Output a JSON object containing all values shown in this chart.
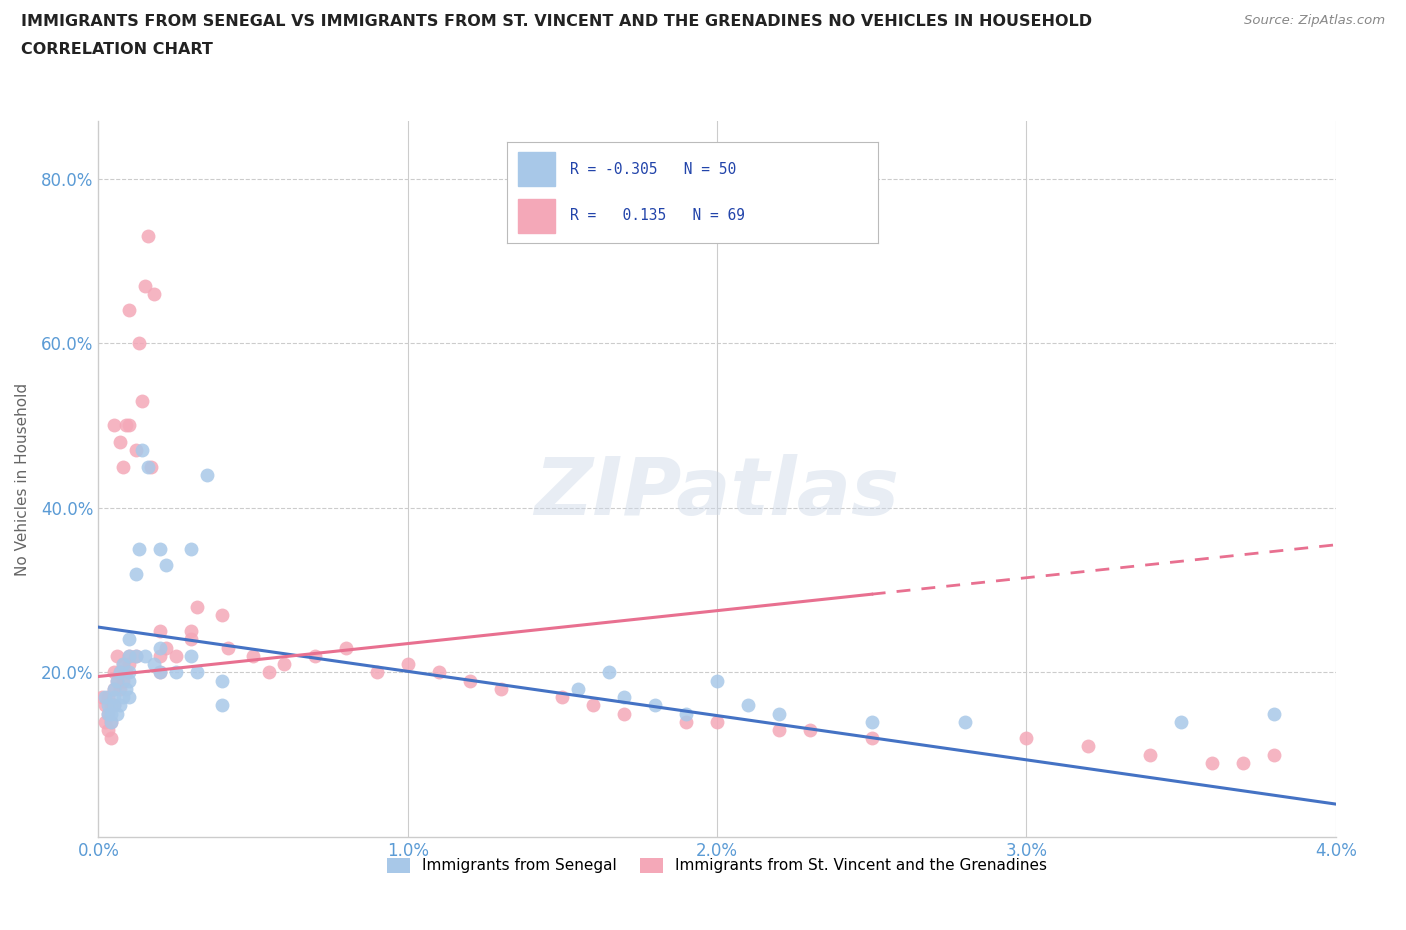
{
  "title_line1": "IMMIGRANTS FROM SENEGAL VS IMMIGRANTS FROM ST. VINCENT AND THE GRENADINES NO VEHICLES IN HOUSEHOLD",
  "title_line2": "CORRELATION CHART",
  "source_text": "Source: ZipAtlas.com",
  "ylabel": "No Vehicles in Household",
  "xlim": [
    0.0,
    0.04
  ],
  "ylim": [
    0.0,
    0.87
  ],
  "xtick_labels": [
    "0.0%",
    "1.0%",
    "2.0%",
    "3.0%",
    "4.0%"
  ],
  "xtick_values": [
    0.0,
    0.01,
    0.02,
    0.03,
    0.04
  ],
  "ytick_labels": [
    "20.0%",
    "40.0%",
    "60.0%",
    "80.0%"
  ],
  "ytick_values": [
    0.2,
    0.4,
    0.6,
    0.8
  ],
  "senegal_color": "#a8c8e8",
  "stvincent_color": "#f4a8b8",
  "senegal_line_color": "#4472c4",
  "stvincent_line_color": "#e87090",
  "watermark": "ZIPatlas",
  "background_color": "#ffffff",
  "grid_color": "#cccccc",
  "senegal_trend_x0": 0.0,
  "senegal_trend_y0": 0.255,
  "senegal_trend_x1": 0.04,
  "senegal_trend_y1": 0.04,
  "stvincent_trend_x0": 0.0,
  "stvincent_trend_y0": 0.195,
  "stvincent_trend_x1": 0.04,
  "stvincent_trend_y1": 0.355,
  "senegal_x": [
    0.0002,
    0.0003,
    0.0003,
    0.0004,
    0.0004,
    0.0005,
    0.0005,
    0.0005,
    0.0006,
    0.0006,
    0.0007,
    0.0007,
    0.0008,
    0.0008,
    0.0009,
    0.001,
    0.001,
    0.001,
    0.001,
    0.001,
    0.0012,
    0.0012,
    0.0013,
    0.0014,
    0.0015,
    0.0016,
    0.0018,
    0.002,
    0.002,
    0.002,
    0.0022,
    0.0025,
    0.003,
    0.003,
    0.0032,
    0.0035,
    0.004,
    0.004,
    0.0155,
    0.0165,
    0.017,
    0.018,
    0.019,
    0.02,
    0.021,
    0.022,
    0.025,
    0.028,
    0.035,
    0.038
  ],
  "senegal_y": [
    0.17,
    0.15,
    0.16,
    0.15,
    0.14,
    0.17,
    0.16,
    0.18,
    0.15,
    0.19,
    0.16,
    0.2,
    0.17,
    0.21,
    0.18,
    0.2,
    0.22,
    0.19,
    0.24,
    0.17,
    0.22,
    0.32,
    0.35,
    0.47,
    0.22,
    0.45,
    0.21,
    0.23,
    0.35,
    0.2,
    0.33,
    0.2,
    0.22,
    0.35,
    0.2,
    0.44,
    0.19,
    0.16,
    0.18,
    0.2,
    0.17,
    0.16,
    0.15,
    0.19,
    0.16,
    0.15,
    0.14,
    0.14,
    0.14,
    0.15
  ],
  "stvincent_x": [
    0.0001,
    0.0002,
    0.0002,
    0.0003,
    0.0003,
    0.0003,
    0.0004,
    0.0004,
    0.0004,
    0.0005,
    0.0005,
    0.0005,
    0.0005,
    0.0006,
    0.0006,
    0.0007,
    0.0007,
    0.0007,
    0.0008,
    0.0008,
    0.0008,
    0.0009,
    0.0009,
    0.001,
    0.001,
    0.001,
    0.001,
    0.0012,
    0.0012,
    0.0013,
    0.0014,
    0.0015,
    0.0016,
    0.0017,
    0.0018,
    0.002,
    0.002,
    0.002,
    0.0022,
    0.0025,
    0.003,
    0.003,
    0.0032,
    0.004,
    0.0042,
    0.005,
    0.0055,
    0.006,
    0.007,
    0.008,
    0.009,
    0.01,
    0.011,
    0.012,
    0.013,
    0.015,
    0.016,
    0.017,
    0.019,
    0.02,
    0.022,
    0.023,
    0.025,
    0.03,
    0.032,
    0.034,
    0.036,
    0.037,
    0.038
  ],
  "stvincent_y": [
    0.17,
    0.16,
    0.14,
    0.17,
    0.15,
    0.13,
    0.16,
    0.14,
    0.12,
    0.2,
    0.18,
    0.16,
    0.5,
    0.19,
    0.22,
    0.18,
    0.2,
    0.48,
    0.19,
    0.21,
    0.45,
    0.2,
    0.5,
    0.22,
    0.21,
    0.5,
    0.64,
    0.22,
    0.47,
    0.6,
    0.53,
    0.67,
    0.73,
    0.45,
    0.66,
    0.25,
    0.22,
    0.2,
    0.23,
    0.22,
    0.24,
    0.25,
    0.28,
    0.27,
    0.23,
    0.22,
    0.2,
    0.21,
    0.22,
    0.23,
    0.2,
    0.21,
    0.2,
    0.19,
    0.18,
    0.17,
    0.16,
    0.15,
    0.14,
    0.14,
    0.13,
    0.13,
    0.12,
    0.12,
    0.11,
    0.1,
    0.09,
    0.09,
    0.1
  ]
}
